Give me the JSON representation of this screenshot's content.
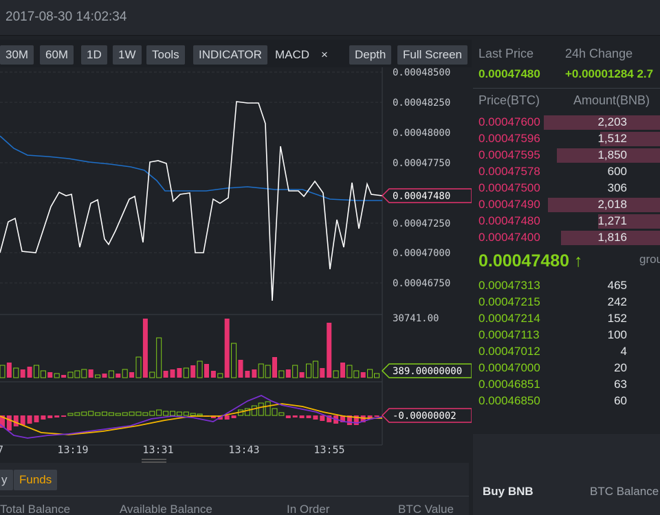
{
  "header": {
    "timestamp": "2017-08-30 14:02:34"
  },
  "toolbar": {
    "intervals": [
      "30M",
      "60M",
      "1D",
      "1W"
    ],
    "tools": "Tools",
    "indicator": "INDICATOR",
    "macd": "MACD",
    "close": "×",
    "depth": "Depth",
    "fullscreen": "Full Screen"
  },
  "chart": {
    "price_ticks": [
      "0.00048500",
      "0.00048250",
      "0.00048000",
      "0.00047750",
      "0.00047250",
      "0.00047000",
      "0.00046750"
    ],
    "current_price_label": "0.00047480",
    "volume_max_label": "30741.00",
    "volume_current_label": "389.00000000",
    "macd_label": "-0.00000002",
    "time_ticks": [
      "7",
      "13:19",
      "13:31",
      "13:43",
      "13:55"
    ],
    "colors": {
      "up": "#83d01a",
      "down": "#e6336f",
      "price_line": "#ffffff",
      "ma_line": "#1e6fc8",
      "signal": "#f5b700",
      "macd": "#7b2fd0"
    }
  },
  "ticker": {
    "last_price_label": "Last Price",
    "change_label": "24h Change",
    "last_price": "0.00047480",
    "change": "+0.00001284 2.7"
  },
  "orderbook": {
    "col_price": "Price(BTC)",
    "col_amount": "Amount(BNB)",
    "asks": [
      {
        "price": "0.00047600",
        "amount": "2,203",
        "depth": 0.62
      },
      {
        "price": "0.00047596",
        "amount": "1,512",
        "depth": 0.32
      },
      {
        "price": "0.00047595",
        "amount": "1,850",
        "depth": 0.55
      },
      {
        "price": "0.00047578",
        "amount": "600",
        "depth": 0
      },
      {
        "price": "0.00047500",
        "amount": "306",
        "depth": 0
      },
      {
        "price": "0.00047490",
        "amount": "2,018",
        "depth": 0.6
      },
      {
        "price": "0.00047480",
        "amount": "1,271",
        "depth": 0.33
      },
      {
        "price": "0.00047400",
        "amount": "1,816",
        "depth": 0.53
      }
    ],
    "last": "0.00047480 ↑",
    "group_label": "grou",
    "bids": [
      {
        "price": "0.00047313",
        "amount": "465"
      },
      {
        "price": "0.00047215",
        "amount": "242"
      },
      {
        "price": "0.00047214",
        "amount": "152"
      },
      {
        "price": "0.00047113",
        "amount": "100"
      },
      {
        "price": "0.00047012",
        "amount": "4"
      },
      {
        "price": "0.00047000",
        "amount": "20"
      },
      {
        "price": "0.00046851",
        "amount": "63"
      },
      {
        "price": "0.00046850",
        "amount": "60"
      }
    ]
  },
  "bottom": {
    "tab_history": "y",
    "tab_funds": "Funds",
    "columns": [
      "Total Balance",
      "Available Balance",
      "In Order",
      "BTC Value"
    ],
    "buy_label": "Buy BNB",
    "btc_balance_label": "BTC Balance"
  }
}
